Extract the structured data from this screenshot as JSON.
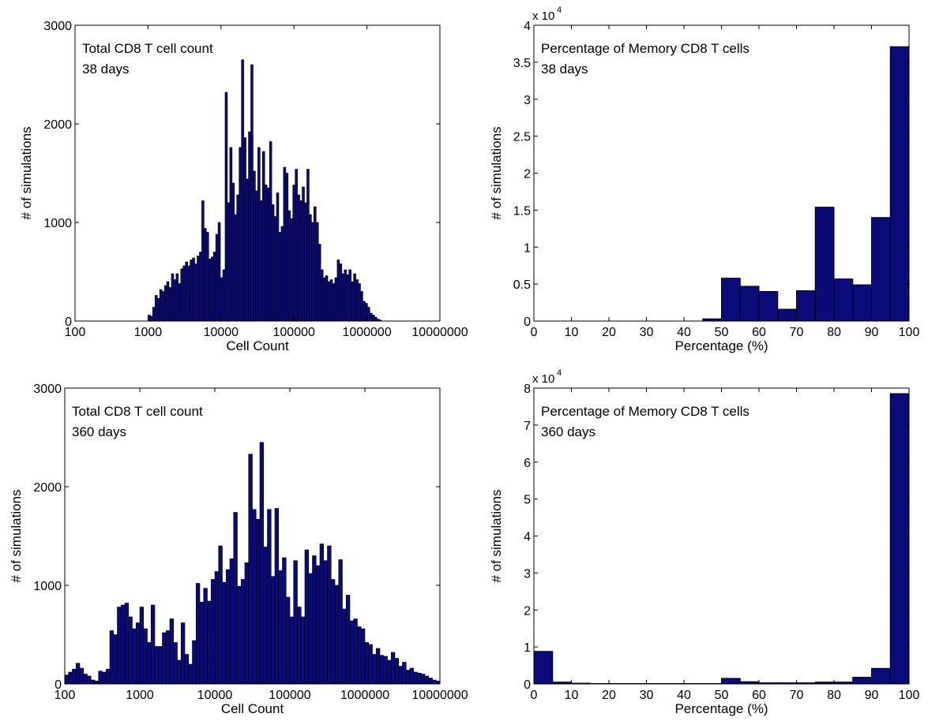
{
  "colors": {
    "bar_fill": "#0a0a78",
    "bar_edge": "#000000",
    "axes": "#000000",
    "background": "#ffffff"
  },
  "chart_data": [
    {
      "id": "tl",
      "type": "bar",
      "title_lines": [
        "Total CD8 T cell count",
        "38 days"
      ],
      "xlabel": "Cell Count",
      "ylabel": "# of simulations",
      "xscale": "log",
      "xlim": [
        100,
        10000000
      ],
      "ylim": [
        0,
        3000
      ],
      "xticks": [
        100,
        1000,
        10000,
        100000,
        1000000,
        10000000
      ],
      "xtick_labels": [
        "100",
        "1000",
        "10000",
        "100000",
        "1000000",
        "10000000"
      ],
      "yticks": [
        0,
        1000,
        2000,
        3000
      ],
      "ytick_labels": [
        "0",
        "1000",
        "2000",
        "3000"
      ],
      "exponent_label": "",
      "grid": false,
      "bins_log10_range": [
        3.0,
        6.2
      ],
      "values": [
        60,
        50,
        140,
        260,
        230,
        320,
        300,
        360,
        400,
        340,
        480,
        420,
        480,
        380,
        530,
        560,
        600,
        560,
        620,
        640,
        580,
        660,
        700,
        1220,
        940,
        900,
        630,
        650,
        700,
        880,
        1000,
        440,
        520,
        2320,
        1200,
        1760,
        1400,
        1080,
        1280,
        1760,
        2650,
        1860,
        1440,
        1920,
        2600,
        1520,
        1320,
        1760,
        1220,
        1720,
        1380,
        1350,
        1820,
        1180,
        1060,
        1300,
        900,
        960,
        1560,
        1500,
        1120,
        1040,
        1380,
        1540,
        1280,
        1220,
        1360,
        1200,
        1540,
        1080,
        1000,
        1160,
        1000,
        780,
        520,
        440,
        460,
        400,
        420,
        380,
        440,
        620,
        580,
        480,
        520,
        470,
        520,
        400,
        480,
        420,
        380,
        300,
        200,
        180,
        140,
        80,
        60,
        40,
        20,
        10
      ]
    },
    {
      "id": "tr",
      "type": "bar",
      "title_lines": [
        "Percentage of Memory CD8 T cells",
        "38 days"
      ],
      "xlabel": "Percentage (%)",
      "ylabel": "# of simulations",
      "xscale": "linear",
      "xlim": [
        0,
        100
      ],
      "ylim": [
        0,
        4
      ],
      "xticks": [
        0,
        10,
        20,
        30,
        40,
        50,
        60,
        70,
        80,
        90,
        100
      ],
      "xtick_labels": [
        "0",
        "10",
        "20",
        "30",
        "40",
        "50",
        "60",
        "70",
        "80",
        "90",
        "100"
      ],
      "yticks": [
        0,
        0.5,
        1,
        1.5,
        2,
        2.5,
        3,
        3.5,
        4
      ],
      "ytick_labels": [
        "0",
        "0.5",
        "1",
        "1.5",
        "2",
        "2.5",
        "3",
        "3.5",
        "4"
      ],
      "exponent_label": "x 10",
      "exponent_power": "4",
      "grid": false,
      "bin_edges": [
        45,
        50,
        55,
        60,
        65,
        70,
        75,
        80,
        85,
        90,
        95,
        100
      ],
      "values": [
        0.03,
        0.58,
        0.47,
        0.4,
        0.16,
        0.41,
        1.54,
        0.57,
        0.49,
        1.4,
        3.71
      ]
    },
    {
      "id": "bl",
      "type": "bar",
      "title_lines": [
        "Total CD8 T cell count",
        "360 days"
      ],
      "xlabel": "Cell Count",
      "ylabel": "# of simulations",
      "xscale": "log",
      "xlim": [
        100,
        10000000
      ],
      "ylim": [
        0,
        3000
      ],
      "xticks": [
        100,
        1000,
        10000,
        100000,
        1000000,
        10000000
      ],
      "xtick_labels": [
        "100",
        "1000",
        "10000",
        "100000",
        "1000000",
        "10000000"
      ],
      "yticks": [
        0,
        1000,
        2000,
        3000
      ],
      "ytick_labels": [
        "0",
        "1000",
        "2000",
        "3000"
      ],
      "exponent_label": "",
      "grid": false,
      "bins_log10_range": [
        2.0,
        7.0
      ],
      "values": [
        90,
        120,
        150,
        210,
        160,
        100,
        80,
        40,
        30,
        130,
        120,
        150,
        540,
        500,
        780,
        800,
        820,
        680,
        560,
        620,
        780,
        560,
        420,
        800,
        380,
        380,
        520,
        540,
        660,
        420,
        240,
        620,
        300,
        200,
        440,
        1020,
        830,
        970,
        840,
        1060,
        1140,
        1400,
        1030,
        1160,
        1270,
        1740,
        990,
        1060,
        1230,
        2330,
        1770,
        1670,
        2450,
        1390,
        1770,
        1090,
        1780,
        1150,
        1280,
        880,
        680,
        1250,
        780,
        680,
        1360,
        1120,
        1300,
        1200,
        1420,
        1250,
        1400,
        1060,
        1000,
        1260,
        760,
        900,
        640,
        660,
        580,
        560,
        420,
        400,
        300,
        360,
        290,
        280,
        240,
        320,
        260,
        180,
        220,
        140,
        160,
        120,
        110,
        100,
        80,
        60,
        40,
        30
      ]
    },
    {
      "id": "br",
      "type": "bar",
      "title_lines": [
        "Percentage of Memory CD8 T cells",
        "360 days"
      ],
      "xlabel": "Percentage (%)",
      "ylabel": "# of simulations",
      "xscale": "linear",
      "xlim": [
        0,
        100
      ],
      "ylim": [
        0,
        8
      ],
      "xticks": [
        0,
        10,
        20,
        30,
        40,
        50,
        60,
        70,
        80,
        90,
        100
      ],
      "xtick_labels": [
        "0",
        "10",
        "20",
        "30",
        "40",
        "50",
        "60",
        "70",
        "80",
        "90",
        "100"
      ],
      "yticks": [
        0,
        1,
        2,
        3,
        4,
        5,
        6,
        7,
        8
      ],
      "ytick_labels": [
        "0",
        "1",
        "2",
        "3",
        "4",
        "5",
        "6",
        "7",
        "8"
      ],
      "exponent_label": "x 10",
      "exponent_power": "4",
      "grid": false,
      "bin_edges": [
        0,
        5,
        10,
        15,
        20,
        25,
        30,
        35,
        40,
        45,
        50,
        55,
        60,
        65,
        70,
        75,
        80,
        85,
        90,
        95,
        100
      ],
      "values": [
        0.88,
        0.05,
        0.02,
        0.01,
        0.01,
        0.01,
        0.01,
        0.01,
        0.01,
        0.01,
        0.15,
        0.06,
        0.03,
        0.03,
        0.03,
        0.05,
        0.05,
        0.18,
        0.42,
        7.85
      ]
    }
  ]
}
